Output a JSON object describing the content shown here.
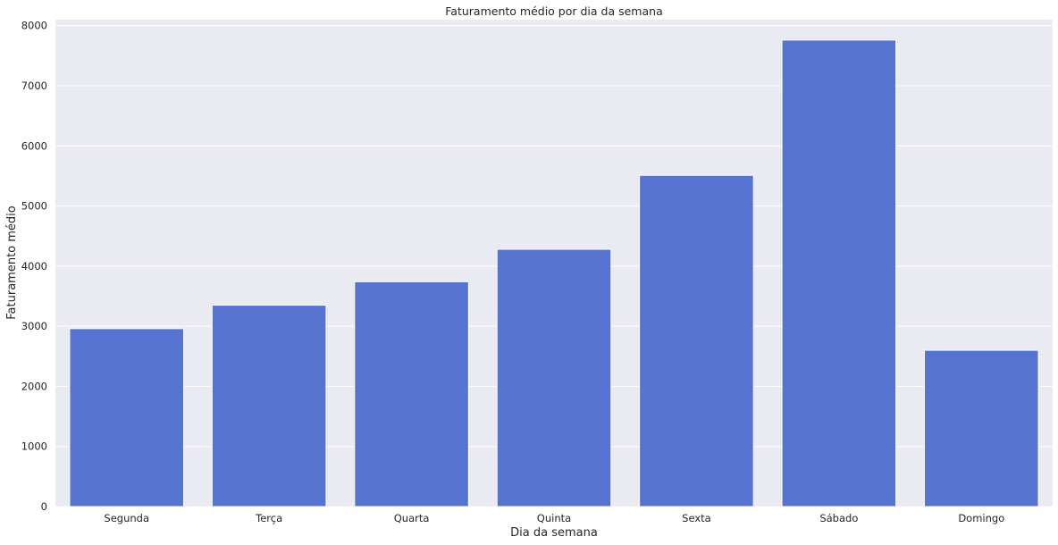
{
  "chart_data": {
    "type": "bar",
    "title": "Faturamento médio por dia da semana",
    "xlabel": "Dia da semana",
    "ylabel": "Faturamento médio",
    "categories": [
      "Segunda",
      "Terça",
      "Quarta",
      "Quinta",
      "Sexta",
      "Sábado",
      "Domingo"
    ],
    "values": [
      2960,
      3350,
      3740,
      4280,
      5510,
      7760,
      2600
    ],
    "ylim": [
      0,
      8100
    ],
    "yticks": [
      0,
      1000,
      2000,
      3000,
      4000,
      5000,
      6000,
      7000,
      8000
    ],
    "grid": true,
    "colors": {
      "bar": "#5573cf",
      "plot_background": "#eaeaf2",
      "grid": "#ffffff"
    }
  }
}
